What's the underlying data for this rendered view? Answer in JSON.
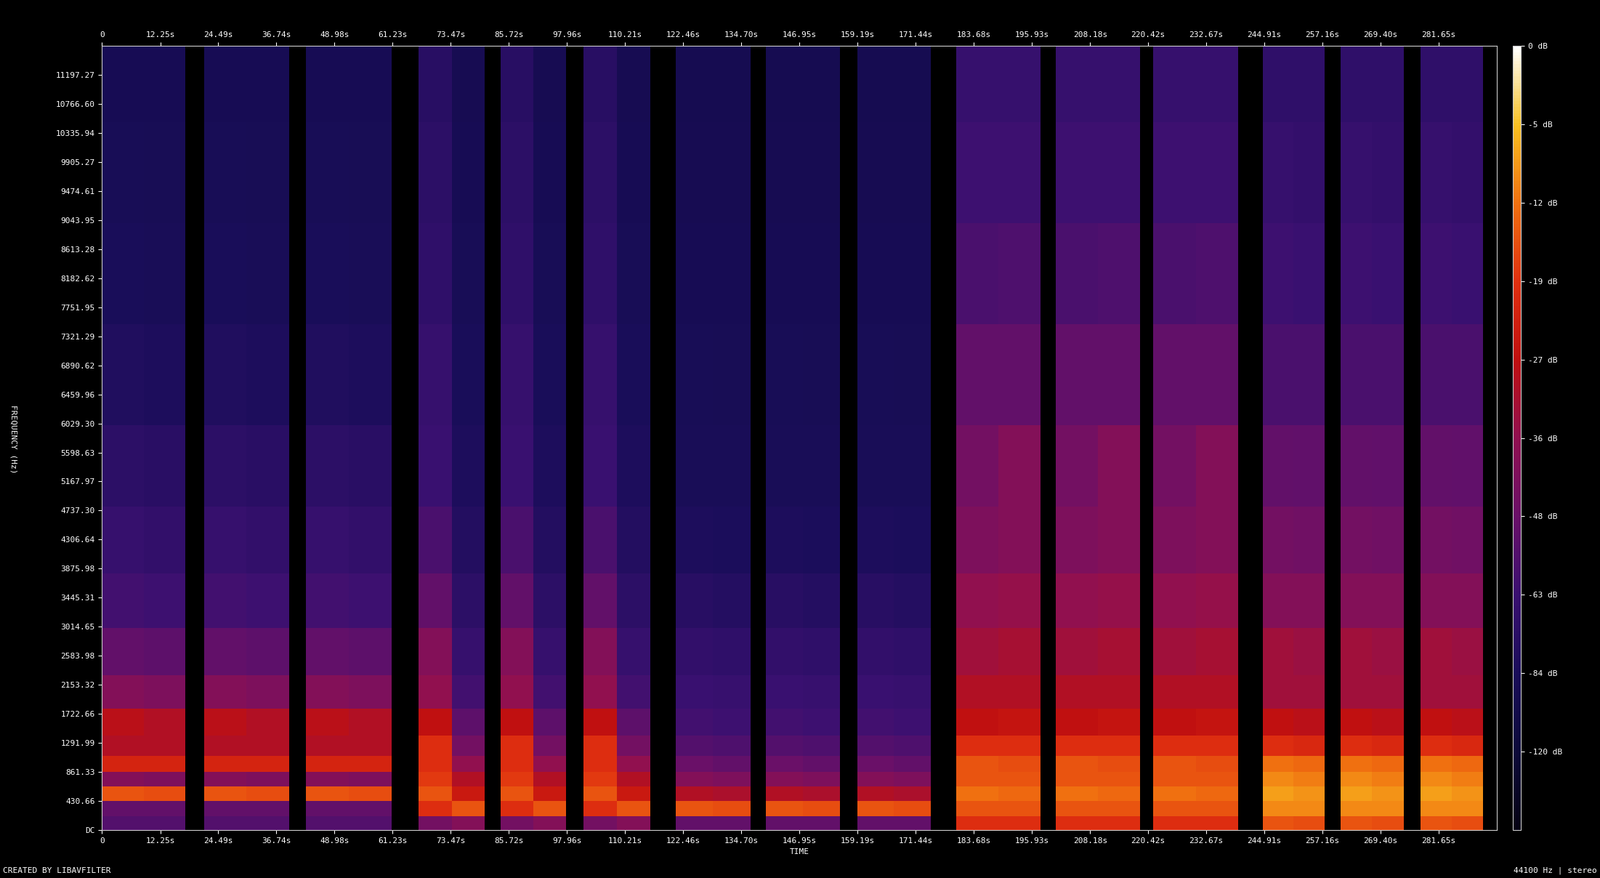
{
  "chart_data": {
    "type": "heatmap",
    "x_label": "TIME",
    "y_label": "FREQUENCY (Hz)",
    "annotations": [
      "CREATED BY LIBAVFILTER",
      "44100 Hz | stereo"
    ],
    "xlim": [
      0,
      293.9
    ],
    "ylim": [
      0,
      11627.9
    ],
    "xticks": [
      0,
      {
        "value": 12.25,
        "label": "12.25s"
      },
      {
        "value": 24.49,
        "label": "24.49s"
      },
      {
        "value": 36.74,
        "label": "36.74s"
      },
      {
        "value": 48.98,
        "label": "48.98s"
      },
      {
        "value": 61.23,
        "label": "61.23s"
      },
      {
        "value": 73.47,
        "label": "73.47s"
      },
      {
        "value": 85.72,
        "label": "85.72s"
      },
      {
        "value": 97.96,
        "label": "97.96s"
      },
      {
        "value": 110.21,
        "label": "110.21s"
      },
      {
        "value": 122.46,
        "label": "122.46s"
      },
      {
        "value": 134.7,
        "label": "134.70s"
      },
      {
        "value": 146.95,
        "label": "146.95s"
      },
      {
        "value": 159.19,
        "label": "159.19s"
      },
      {
        "value": 171.44,
        "label": "171.44s"
      },
      {
        "value": 183.68,
        "label": "183.68s"
      },
      {
        "value": 195.93,
        "label": "195.93s"
      },
      {
        "value": 208.18,
        "label": "208.18s"
      },
      {
        "value": 220.42,
        "label": "220.42s"
      },
      {
        "value": 232.67,
        "label": "232.67s"
      },
      {
        "value": 244.91,
        "label": "244.91s"
      },
      {
        "value": 257.16,
        "label": "257.16s"
      },
      {
        "value": 269.4,
        "label": "269.40s"
      },
      {
        "value": 281.65,
        "label": "281.65s"
      }
    ],
    "yticks": [
      {
        "value": 0,
        "label": "DC"
      },
      430.66,
      861.33,
      1291.99,
      1722.66,
      2153.32,
      2583.98,
      3014.65,
      3445.31,
      3875.98,
      4306.64,
      {
        "value": 4737.3,
        "label": "4737.30"
      },
      5167.97,
      5598.63,
      {
        "value": 6029.3,
        "label": "6029.30"
      },
      6459.96,
      6890.62,
      7321.29,
      7751.95,
      8182.62,
      8613.28,
      9043.95,
      9474.61,
      9905.27,
      10335.94,
      {
        "value": 10766.6,
        "label": "10766.60"
      },
      11197.27
    ],
    "colorbar_range": [
      -156,
      0
    ],
    "colorbar_ticks": [
      {
        "value": 0,
        "label": "0 dB"
      },
      {
        "value": -5,
        "label": "-5 dB"
      },
      {
        "value": -12,
        "label": "-12 dB"
      },
      {
        "value": -19,
        "label": "-19 dB"
      },
      {
        "value": -27,
        "label": "-27 dB"
      },
      {
        "value": -36,
        "label": "-36 dB"
      },
      {
        "value": -48,
        "label": "-48 dB"
      },
      {
        "value": -63,
        "label": "-63 dB"
      },
      {
        "value": -84,
        "label": "-84 dB"
      },
      {
        "value": -120,
        "label": "-120 dB"
      }
    ],
    "x_edges": [
      0,
      8.8,
      17.6,
      21.5,
      30.45,
      39.4,
      43.0,
      52.0,
      61.0,
      66.7,
      73.65,
      80.6,
      83.9,
      90.85,
      97.8,
      101.5,
      108.5,
      115.5,
      120.9,
      128.75,
      136.6,
      139.8,
      147.65,
      155.5,
      159.1,
      166.85,
      174.6,
      180.0,
      188.9,
      197.8,
      201.0,
      209.85,
      218.7,
      221.5,
      230.45,
      239.4,
      244.5,
      251.05,
      257.6,
      260.9,
      267.55,
      274.2,
      277.8,
      284.4,
      291.0,
      293.9
    ],
    "y_edges": [
      0,
      200,
      430,
      650,
      861,
      1100,
      1400,
      1800,
      2300,
      3000,
      3800,
      4800,
      6000,
      7500,
      9000,
      10500,
      11627.9
    ],
    "cells": [
      [
        -55,
        -50,
        -15,
        -40,
        -22,
        -30,
        -28,
        -40,
        -50,
        -60,
        -66,
        -72,
        -80,
        -85,
        -88,
        -90
      ],
      [
        -55,
        -50,
        -16,
        -42,
        -22,
        -30,
        -30,
        -42,
        -52,
        -62,
        -68,
        -74,
        -82,
        -86,
        -89,
        -91
      ],
      [
        null,
        null,
        null,
        null,
        null,
        null,
        null,
        null,
        null,
        null,
        null,
        null,
        null,
        null,
        null,
        null
      ],
      [
        -55,
        -50,
        -15,
        -40,
        -22,
        -30,
        -28,
        -40,
        -50,
        -60,
        -66,
        -72,
        -80,
        -85,
        -88,
        -90
      ],
      [
        -55,
        -50,
        -16,
        -42,
        -22,
        -30,
        -30,
        -42,
        -52,
        -62,
        -68,
        -74,
        -82,
        -86,
        -89,
        -91
      ],
      [
        null,
        null,
        null,
        null,
        null,
        null,
        null,
        null,
        null,
        null,
        null,
        null,
        null,
        null,
        null,
        null
      ],
      [
        -55,
        -50,
        -15,
        -40,
        -22,
        -30,
        -28,
        -40,
        -50,
        -60,
        -66,
        -72,
        -80,
        -85,
        -88,
        -90
      ],
      [
        -55,
        -50,
        -16,
        -42,
        -22,
        -30,
        -30,
        -42,
        -52,
        -62,
        -68,
        -74,
        -82,
        -86,
        -89,
        -91
      ],
      [
        null,
        null,
        null,
        null,
        null,
        null,
        null,
        null,
        null,
        null,
        null,
        null,
        null,
        null,
        null,
        null
      ],
      [
        -45,
        -20,
        -15,
        -18,
        -20,
        -20,
        -27,
        -36,
        -40,
        -50,
        -58,
        -63,
        -66,
        -70,
        -72,
        -75
      ],
      [
        -40,
        -15,
        -25,
        -30,
        -36,
        -45,
        -52,
        -60,
        -66,
        -72,
        -78,
        -82,
        -85,
        -88,
        -90,
        -92
      ],
      [
        null,
        null,
        null,
        null,
        null,
        null,
        null,
        null,
        null,
        null,
        null,
        null,
        null,
        null,
        null,
        null
      ],
      [
        -45,
        -20,
        -15,
        -18,
        -20,
        -20,
        -27,
        -36,
        -40,
        -50,
        -58,
        -63,
        -66,
        -70,
        -72,
        -75
      ],
      [
        -40,
        -15,
        -25,
        -30,
        -36,
        -45,
        -52,
        -60,
        -66,
        -72,
        -78,
        -82,
        -85,
        -88,
        -90,
        -92
      ],
      [
        null,
        null,
        null,
        null,
        null,
        null,
        null,
        null,
        null,
        null,
        null,
        null,
        null,
        null,
        null,
        null
      ],
      [
        -45,
        -20,
        -15,
        -18,
        -20,
        -20,
        -27,
        -36,
        -40,
        -50,
        -58,
        -63,
        -66,
        -70,
        -72,
        -75
      ],
      [
        -40,
        -15,
        -25,
        -30,
        -36,
        -45,
        -52,
        -60,
        -66,
        -72,
        -78,
        -82,
        -85,
        -88,
        -90,
        -92
      ],
      [
        null,
        null,
        null,
        null,
        null,
        null,
        null,
        null,
        null,
        null,
        null,
        null,
        null,
        null,
        null,
        null
      ],
      [
        -50,
        -15,
        -30,
        -40,
        -48,
        -55,
        -60,
        -63,
        -68,
        -75,
        -82,
        -86,
        -88,
        -90,
        -92,
        -93
      ],
      [
        -50,
        -16,
        -31,
        -42,
        -50,
        -57,
        -62,
        -65,
        -70,
        -77,
        -83,
        -87,
        -89,
        -91,
        -92,
        -93
      ],
      [
        null,
        null,
        null,
        null,
        null,
        null,
        null,
        null,
        null,
        null,
        null,
        null,
        null,
        null,
        null,
        null
      ],
      [
        -50,
        -15,
        -30,
        -40,
        -48,
        -55,
        -60,
        -63,
        -68,
        -75,
        -82,
        -86,
        -88,
        -90,
        -92,
        -93
      ],
      [
        -50,
        -16,
        -31,
        -42,
        -50,
        -57,
        -62,
        -65,
        -70,
        -77,
        -83,
        -87,
        -89,
        -91,
        -92,
        -93
      ],
      [
        null,
        null,
        null,
        null,
        null,
        null,
        null,
        null,
        null,
        null,
        null,
        null,
        null,
        null,
        null,
        null
      ],
      [
        -50,
        -15,
        -30,
        -40,
        -48,
        -55,
        -60,
        -63,
        -68,
        -75,
        -82,
        -86,
        -88,
        -90,
        -92,
        -93
      ],
      [
        -50,
        -16,
        -31,
        -42,
        -50,
        -57,
        -62,
        -65,
        -70,
        -77,
        -83,
        -87,
        -89,
        -91,
        -92,
        -93
      ],
      [
        null,
        null,
        null,
        null,
        null,
        null,
        null,
        null,
        null,
        null,
        null,
        null,
        null,
        null,
        null,
        null
      ],
      [
        -20,
        -15,
        -12,
        -15,
        -15,
        -20,
        -27,
        -30,
        -33,
        -36,
        -42,
        -45,
        -50,
        -58,
        -62,
        -66
      ],
      [
        -20,
        -15,
        -13,
        -15,
        -16,
        -20,
        -26,
        -30,
        -32,
        -35,
        -40,
        -40,
        -50,
        -57,
        -62,
        -66
      ],
      [
        null,
        null,
        null,
        null,
        null,
        null,
        null,
        null,
        null,
        null,
        null,
        null,
        null,
        null,
        null,
        null
      ],
      [
        -20,
        -15,
        -12,
        -15,
        -15,
        -20,
        -27,
        -30,
        -33,
        -36,
        -42,
        -45,
        -50,
        -58,
        -62,
        -66
      ],
      [
        -20,
        -15,
        -13,
        -15,
        -16,
        -20,
        -26,
        -30,
        -32,
        -35,
        -40,
        -40,
        -50,
        -57,
        -62,
        -66
      ],
      [
        null,
        null,
        null,
        null,
        null,
        null,
        null,
        null,
        null,
        null,
        null,
        null,
        null,
        null,
        null,
        null
      ],
      [
        -20,
        -15,
        -12,
        -15,
        -15,
        -20,
        -27,
        -30,
        -33,
        -36,
        -42,
        -45,
        -50,
        -58,
        -62,
        -66
      ],
      [
        -20,
        -15,
        -13,
        -15,
        -16,
        -20,
        -26,
        -30,
        -32,
        -35,
        -40,
        -40,
        -50,
        -57,
        -62,
        -66
      ],
      [
        null,
        null,
        null,
        null,
        null,
        null,
        null,
        null,
        null,
        null,
        null,
        null,
        null,
        null,
        null,
        null
      ],
      [
        -15,
        -10,
        -8,
        -10,
        -12,
        -20,
        -27,
        -33,
        -33,
        -40,
        -45,
        -50,
        -58,
        -62,
        -66,
        -70
      ],
      [
        -16,
        -10,
        -9,
        -11,
        -13,
        -21,
        -28,
        -33,
        -34,
        -40,
        -46,
        -51,
        -58,
        -63,
        -67,
        -70
      ],
      [
        null,
        null,
        null,
        null,
        null,
        null,
        null,
        null,
        null,
        null,
        null,
        null,
        null,
        null,
        null,
        null
      ],
      [
        -15,
        -10,
        -8,
        -10,
        -12,
        -20,
        -27,
        -33,
        -33,
        -40,
        -45,
        -50,
        -58,
        -62,
        -66,
        -70
      ],
      [
        -16,
        -10,
        -9,
        -11,
        -13,
        -21,
        -28,
        -33,
        -34,
        -40,
        -46,
        -51,
        -58,
        -63,
        -67,
        -70
      ],
      [
        null,
        null,
        null,
        null,
        null,
        null,
        null,
        null,
        null,
        null,
        null,
        null,
        null,
        null,
        null,
        null
      ],
      [
        -15,
        -10,
        -8,
        -10,
        -12,
        -20,
        -27,
        -33,
        -33,
        -40,
        -45,
        -50,
        -58,
        -62,
        -66,
        -70
      ],
      [
        -16,
        -10,
        -9,
        -11,
        -13,
        -21,
        -28,
        -33,
        -34,
        -40,
        -46,
        -51,
        -58,
        -63,
        -67,
        -70
      ],
      [
        null,
        null,
        null,
        null,
        null,
        null,
        null,
        null,
        null,
        null,
        null,
        null,
        null,
        null,
        null,
        null
      ]
    ]
  }
}
